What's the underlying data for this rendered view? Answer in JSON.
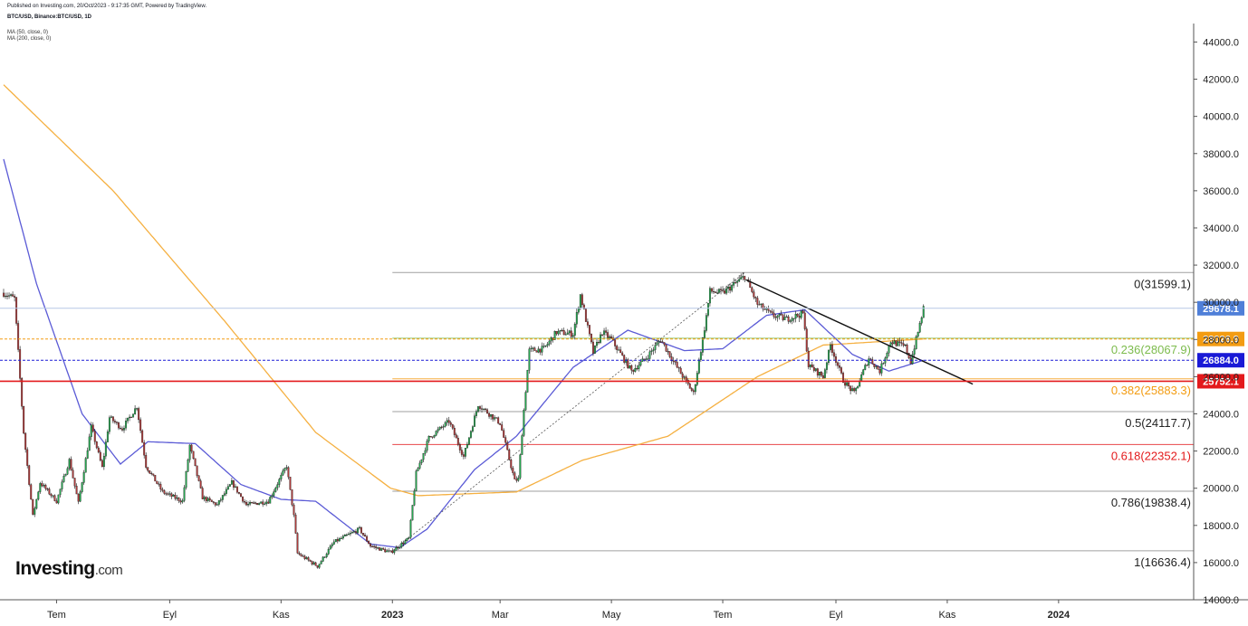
{
  "header": {
    "published": "Published on Investing.com, 20/Oct/2023 - 9:17:35 GMT, Powered by TradingView.",
    "symbol": "BTC/USD, Binance:BTC/USD, 1D",
    "indicators": [
      "MA (50, close, 0)",
      "MA (200, close, 0)"
    ]
  },
  "logo": {
    "main": "Investing",
    "suffix": ".com"
  },
  "colors": {
    "up": "#26a650",
    "down": "#ae3b3b",
    "ma50": "#5b5bd6",
    "ma200": "#f5b041",
    "fib_line": "#888888",
    "fib_0236": "#7cbb4c",
    "fib_0382": "#f39c12",
    "fib_0618": "#e31a1c",
    "last_price_tag": "#4f7fd8",
    "ma200_tag": "#f39c12",
    "ma50_tag": "#1a1ad6",
    "support_tag": "#e31a1c",
    "trendline": "#111111"
  },
  "chart_data": {
    "type": "candlestick",
    "title": "BTC/USD, Binance:BTC/USD, 1D",
    "y_ticks": [
      "14000.0",
      "16000.0",
      "18000.0",
      "20000.0",
      "22000.0",
      "24000.0",
      "26000.0",
      "28000.0",
      "30000.0",
      "32000.0",
      "34000.0",
      "36000.0",
      "38000.0",
      "40000.0",
      "42000.0",
      "44000.0"
    ],
    "ylim": [
      14000,
      44800
    ],
    "x_labels": [
      {
        "date": "2022-07-01",
        "label": "Tem",
        "bold": false
      },
      {
        "date": "2022-09-01",
        "label": "Eyl",
        "bold": false
      },
      {
        "date": "2022-11-01",
        "label": "Kas",
        "bold": false
      },
      {
        "date": "2023-01-01",
        "label": "2023",
        "bold": true
      },
      {
        "date": "2023-03-01",
        "label": "Mar",
        "bold": false
      },
      {
        "date": "2023-05-01",
        "label": "May",
        "bold": false
      },
      {
        "date": "2023-07-01",
        "label": "Tem",
        "bold": false
      },
      {
        "date": "2023-09-01",
        "label": "Eyl",
        "bold": false
      },
      {
        "date": "2023-11-01",
        "label": "Kas",
        "bold": false
      },
      {
        "date": "2024-01-01",
        "label": "2024",
        "bold": true
      }
    ],
    "xlim": [
      "2022-06-02",
      "2024-03-15"
    ],
    "price_path": [
      [
        "2022-06-02",
        30500
      ],
      [
        "2022-06-08",
        30200
      ],
      [
        "2022-06-13",
        23000
      ],
      [
        "2022-06-18",
        18500
      ],
      [
        "2022-06-22",
        20300
      ],
      [
        "2022-07-01",
        19300
      ],
      [
        "2022-07-08",
        21500
      ],
      [
        "2022-07-13",
        19200
      ],
      [
        "2022-07-20",
        23300
      ],
      [
        "2022-07-26",
        21100
      ],
      [
        "2022-07-30",
        23800
      ],
      [
        "2022-08-06",
        23200
      ],
      [
        "2022-08-14",
        24400
      ],
      [
        "2022-08-19",
        21200
      ],
      [
        "2022-08-28",
        19800
      ],
      [
        "2022-09-08",
        19300
      ],
      [
        "2022-09-12",
        22300
      ],
      [
        "2022-09-19",
        19500
      ],
      [
        "2022-09-27",
        19100
      ],
      [
        "2022-10-05",
        20300
      ],
      [
        "2022-10-13",
        19100
      ],
      [
        "2022-10-25",
        19300
      ],
      [
        "2022-11-04",
        21200
      ],
      [
        "2022-11-08",
        18500
      ],
      [
        "2022-11-10",
        16500
      ],
      [
        "2022-11-21",
        15800
      ],
      [
        "2022-11-30",
        17100
      ],
      [
        "2022-12-14",
        17800
      ],
      [
        "2022-12-20",
        16900
      ],
      [
        "2022-12-31",
        16550
      ],
      [
        "2023-01-10",
        17300
      ],
      [
        "2023-01-14",
        20800
      ],
      [
        "2023-01-21",
        22700
      ],
      [
        "2023-02-01",
        23600
      ],
      [
        "2023-02-09",
        21700
      ],
      [
        "2023-02-17",
        24500
      ],
      [
        "2023-03-01",
        23500
      ],
      [
        "2023-03-09",
        20400
      ],
      [
        "2023-03-11",
        20500
      ],
      [
        "2023-03-14",
        24200
      ],
      [
        "2023-03-17",
        27400
      ],
      [
        "2023-03-25",
        27500
      ],
      [
        "2023-04-01",
        28400
      ],
      [
        "2023-04-10",
        28300
      ],
      [
        "2023-04-14",
        30400
      ],
      [
        "2023-04-21",
        27300
      ],
      [
        "2023-04-26",
        28400
      ],
      [
        "2023-05-01",
        28000
      ],
      [
        "2023-05-12",
        26300
      ],
      [
        "2023-05-20",
        27000
      ],
      [
        "2023-05-28",
        28000
      ],
      [
        "2023-06-06",
        26500
      ],
      [
        "2023-06-15",
        25100
      ],
      [
        "2023-06-21",
        28600
      ],
      [
        "2023-06-24",
        30600
      ],
      [
        "2023-07-01",
        30500
      ],
      [
        "2023-07-13",
        31400
      ],
      [
        "2023-07-20",
        29900
      ],
      [
        "2023-07-28",
        29300
      ],
      [
        "2023-08-05",
        29100
      ],
      [
        "2023-08-14",
        29400
      ],
      [
        "2023-08-17",
        26600
      ],
      [
        "2023-08-25",
        26000
      ],
      [
        "2023-08-29",
        27700
      ],
      [
        "2023-09-05",
        25800
      ],
      [
        "2023-09-11",
        25100
      ],
      [
        "2023-09-19",
        27000
      ],
      [
        "2023-09-25",
        26300
      ],
      [
        "2023-10-01",
        27900
      ],
      [
        "2023-10-09",
        27600
      ],
      [
        "2023-10-12",
        26800
      ],
      [
        "2023-10-16",
        28400
      ],
      [
        "2023-10-19",
        29678
      ]
    ],
    "ma50": [
      [
        "2022-06-02",
        37700
      ],
      [
        "2022-06-20",
        31000
      ],
      [
        "2022-07-15",
        24000
      ],
      [
        "2022-08-05",
        21300
      ],
      [
        "2022-08-20",
        22500
      ],
      [
        "2022-09-15",
        22400
      ],
      [
        "2022-10-10",
        20200
      ],
      [
        "2022-11-01",
        19400
      ],
      [
        "2022-11-20",
        19300
      ],
      [
        "2022-12-20",
        17000
      ],
      [
        "2023-01-05",
        16800
      ],
      [
        "2023-01-20",
        17800
      ],
      [
        "2023-02-15",
        21000
      ],
      [
        "2023-03-10",
        22800
      ],
      [
        "2023-04-10",
        26500
      ],
      [
        "2023-05-10",
        28500
      ],
      [
        "2023-06-10",
        27400
      ],
      [
        "2023-07-01",
        27500
      ],
      [
        "2023-07-25",
        29300
      ],
      [
        "2023-08-15",
        29600
      ],
      [
        "2023-09-10",
        27200
      ],
      [
        "2023-09-30",
        26300
      ],
      [
        "2023-10-19",
        26884
      ]
    ],
    "ma200": [
      [
        "2022-06-02",
        41700
      ],
      [
        "2022-08-01",
        36000
      ],
      [
        "2022-10-01",
        29000
      ],
      [
        "2022-11-20",
        23000
      ],
      [
        "2022-12-31",
        20000
      ],
      [
        "2023-01-15",
        19600
      ],
      [
        "2023-03-10",
        19800
      ],
      [
        "2023-04-15",
        21500
      ],
      [
        "2023-06-01",
        22800
      ],
      [
        "2023-07-20",
        26000
      ],
      [
        "2023-08-25",
        27700
      ],
      [
        "2023-10-19",
        28026.9
      ]
    ],
    "fibonacci": {
      "x_start": "2023-01-01",
      "levels": [
        {
          "ratio": "0",
          "value": 31599.1,
          "label": "0(31599.1)"
        },
        {
          "ratio": "0.236",
          "value": 28067.9,
          "label": "0.236(28067.9)"
        },
        {
          "ratio": "0.382",
          "value": 25883.3,
          "label": "0.382(25883.3)"
        },
        {
          "ratio": "0.5",
          "value": 24117.7,
          "label": "0.5(24117.7)"
        },
        {
          "ratio": "0.618",
          "value": 22352.1,
          "label": "0.618(22352.1)"
        },
        {
          "ratio": "0.786",
          "value": 19838.4,
          "label": "0.786(19838.4)"
        },
        {
          "ratio": "1",
          "value": 16636.4,
          "label": "1(16636.4)"
        }
      ]
    },
    "price_tags": [
      {
        "value": 29678.1,
        "label": "29678.1",
        "role": "last"
      },
      {
        "value": 28026.9,
        "label": "28026.9",
        "role": "ma200"
      },
      {
        "value": 26884.0,
        "label": "26884.0",
        "role": "ma50"
      },
      {
        "value": 25752.1,
        "label": "25752.1",
        "role": "support"
      }
    ],
    "dotted_diagonal": [
      [
        "2022-12-31",
        16550
      ],
      [
        "2023-07-13",
        31599.1
      ]
    ],
    "trendline": [
      [
        "2023-07-14",
        31200
      ],
      [
        "2023-11-15",
        25600
      ]
    ],
    "grid": false,
    "legend": "top-left"
  }
}
